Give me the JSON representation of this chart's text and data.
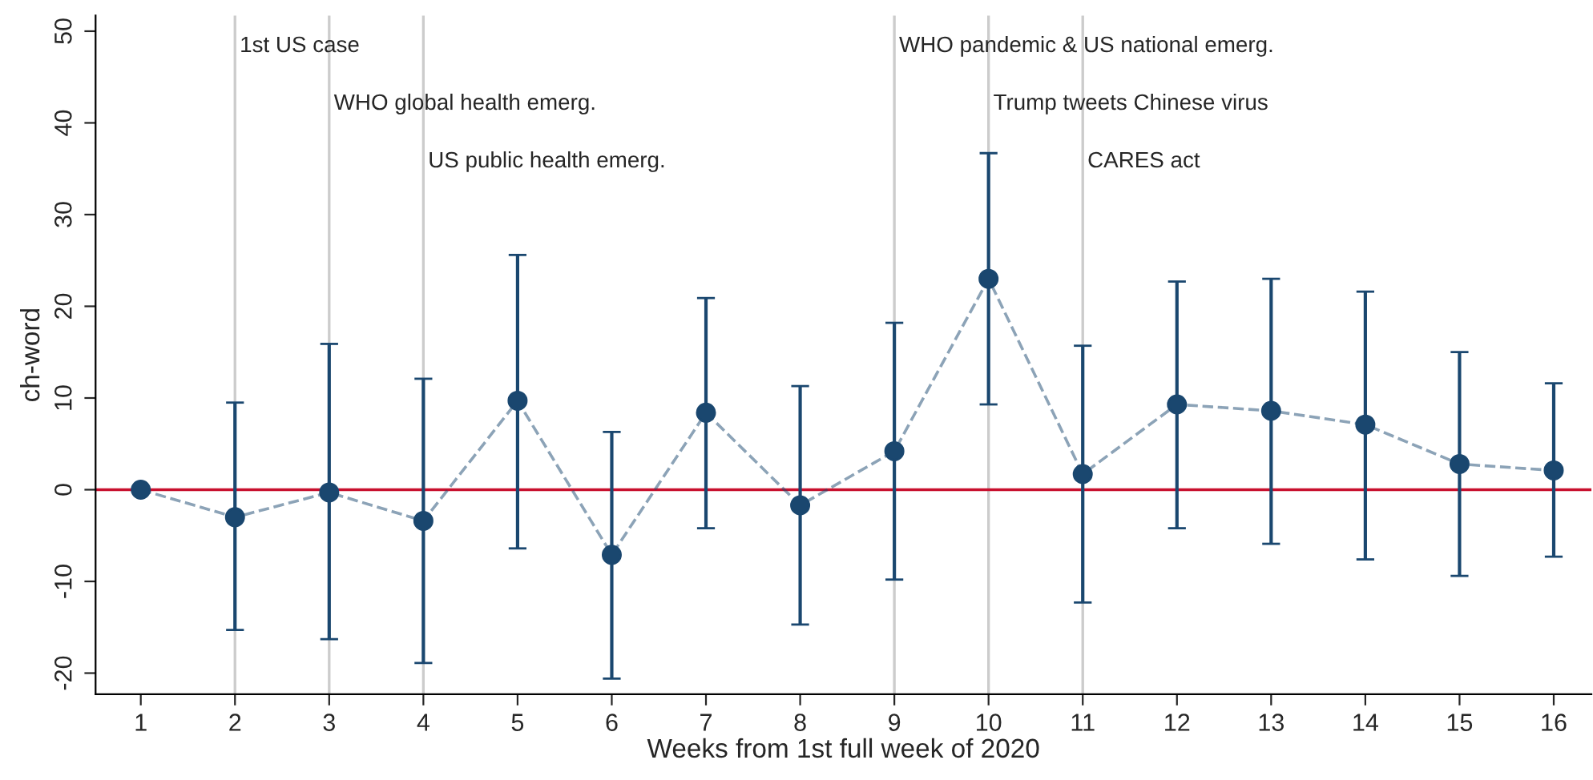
{
  "chart_data": {
    "type": "line",
    "xlabel": "Weeks from 1st full week of 2020",
    "ylabel": "ch-word",
    "x": [
      1,
      2,
      3,
      4,
      5,
      6,
      7,
      8,
      9,
      10,
      11,
      12,
      13,
      14,
      15,
      16
    ],
    "series": [
      {
        "color": "#1a476f",
        "values": [
          0,
          -3,
          -0.3,
          -3.4,
          9.7,
          -7.1,
          8.4,
          -1.7,
          4.2,
          23,
          1.7,
          9.3,
          8.6,
          7.1,
          2.8,
          2.1
        ],
        "errors": [
          null,
          [
            -15.3,
            9.5
          ],
          [
            -16.3,
            15.9
          ],
          [
            -18.9,
            12.1
          ],
          [
            -6.4,
            25.6
          ],
          [
            -20.6,
            6.3
          ],
          [
            -4.2,
            20.9
          ],
          [
            -14.7,
            11.3
          ],
          [
            -9.8,
            18.2
          ],
          [
            9.3,
            36.7
          ],
          [
            -12.3,
            15.7
          ],
          [
            -4.2,
            22.7
          ],
          [
            -5.9,
            23.0
          ],
          [
            -7.6,
            21.6
          ],
          [
            -9.4,
            15.0
          ],
          [
            -7.3,
            11.6
          ]
        ]
      }
    ],
    "marker": "circle",
    "line_style": "dashed",
    "grid": false,
    "xlim": [
      0.52,
      16.4
    ],
    "xticks": [
      1,
      2,
      3,
      4,
      5,
      6,
      7,
      8,
      9,
      10,
      11,
      12,
      13,
      14,
      15,
      16
    ],
    "ylim": [
      -22.3,
      51.7
    ],
    "yticks": [
      -20,
      -10,
      0,
      10,
      20,
      30,
      40,
      50
    ],
    "ref_lines": [
      {
        "axis": "x",
        "value": 2,
        "label": "1st US case",
        "color": "#cccccc"
      },
      {
        "axis": "x",
        "value": 3,
        "label": "WHO global health emerg.",
        "color": "#cccccc"
      },
      {
        "axis": "x",
        "value": 4,
        "label": "US public health emerg.",
        "color": "#cccccc"
      },
      {
        "axis": "x",
        "value": 9,
        "label": "WHO pandemic & US national emerg.",
        "color": "#cccccc"
      },
      {
        "axis": "x",
        "value": 10,
        "label": "Trump tweets Chinese virus",
        "color": "#cccccc"
      },
      {
        "axis": "x",
        "value": 11,
        "label": "CARES act",
        "color": "#cccccc"
      },
      {
        "axis": "y",
        "value": 0,
        "color": "#c8102e"
      }
    ]
  }
}
